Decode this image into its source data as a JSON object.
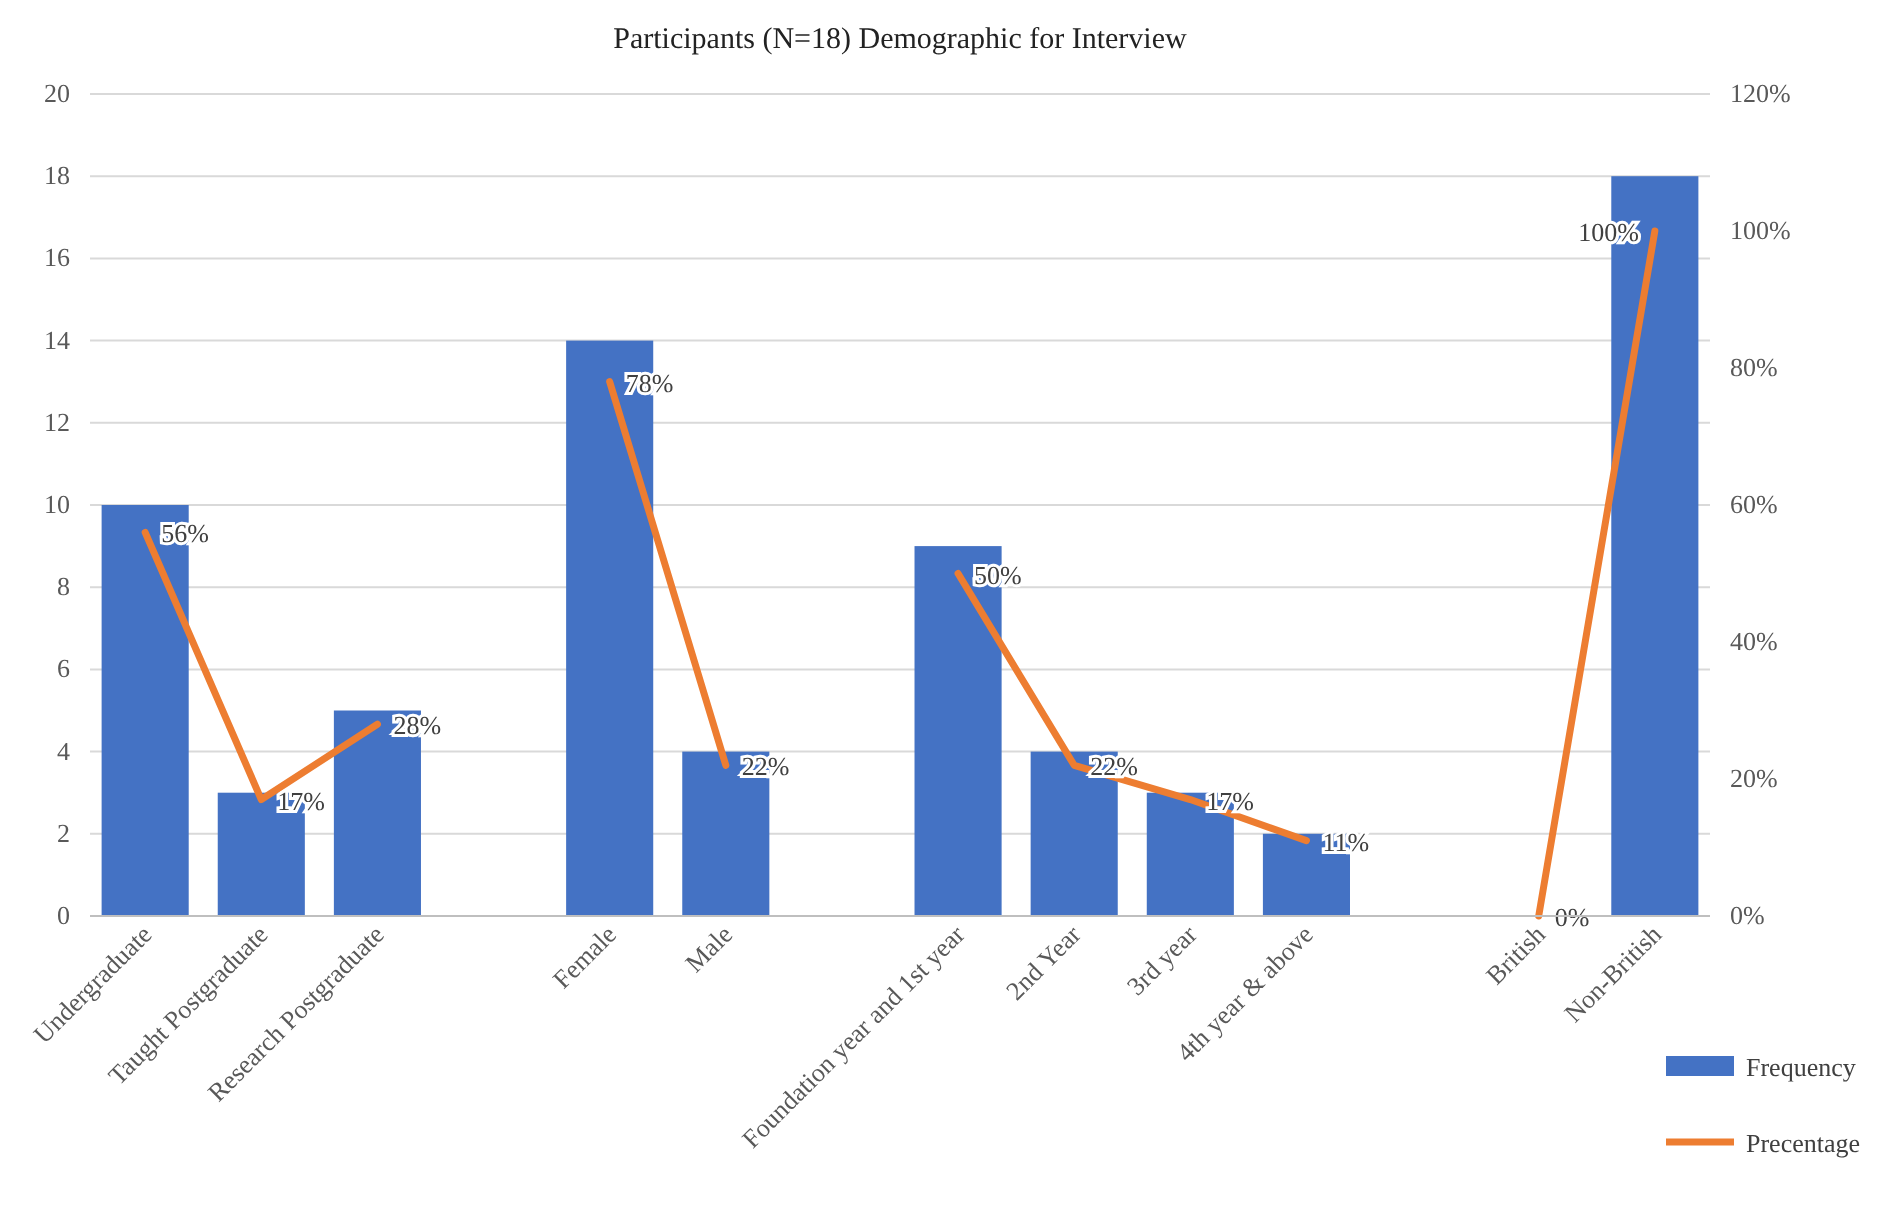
{
  "chart_data": {
    "type": "bar",
    "title": "Participants (N=18) Demographic for Interview",
    "categories": [
      "Undergraduate",
      "Taught Postgraduate",
      "Research Postgraduate",
      null,
      "Female",
      "Male",
      null,
      "Foundation year and 1st year",
      "2nd Year",
      "3rd year",
      "4th year & above",
      null,
      "British",
      "Non-British"
    ],
    "series": [
      {
        "name": "Frequency",
        "color": "#4472c4",
        "values": [
          10,
          3,
          5,
          null,
          14,
          4,
          null,
          9,
          4,
          3,
          2,
          null,
          0,
          18
        ]
      },
      {
        "name": "Precentage",
        "type": "line",
        "axis": "y2",
        "color": "#ed7d31",
        "values": [
          56,
          17,
          28,
          null,
          78,
          22,
          null,
          50,
          22,
          17,
          11,
          null,
          0,
          100
        ],
        "value_labels": [
          "56%",
          "17%",
          "28%",
          null,
          "78%",
          "22%",
          null,
          "50%",
          "22%",
          "17%",
          "11%",
          null,
          "0%",
          "100%"
        ]
      }
    ],
    "ylim": [
      0,
      20
    ],
    "yticks": [
      0,
      2,
      4,
      6,
      8,
      10,
      12,
      14,
      16,
      18,
      20
    ],
    "y2lim": [
      0,
      120
    ],
    "y2ticks": [
      {
        "value": 0,
        "label": "0%"
      },
      {
        "value": 20,
        "label": "20%"
      },
      {
        "value": 40,
        "label": "40%"
      },
      {
        "value": 60,
        "label": "60%"
      },
      {
        "value": 80,
        "label": "80%"
      },
      {
        "value": 100,
        "label": "100%"
      },
      {
        "value": 120,
        "label": "120%"
      }
    ],
    "grid": "y",
    "legend": "bottom right",
    "marker": "none",
    "line_style": "solid"
  }
}
